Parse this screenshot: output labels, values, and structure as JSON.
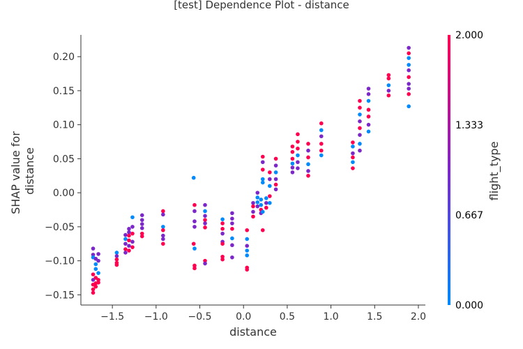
{
  "chart_data": {
    "type": "scatter",
    "title": "[test] Dependence Plot - distance",
    "xlabel": "distance",
    "ylabel_lines": [
      "SHAP value for",
      "distance"
    ],
    "xlim": [
      -1.86,
      2.08
    ],
    "ylim": [
      -0.165,
      0.232
    ],
    "x_ticks": [
      -1.5,
      -1.0,
      -0.5,
      0.0,
      0.5,
      1.0,
      1.5,
      2.0
    ],
    "x_tick_labels": [
      "−1.5",
      "−1.0",
      "−0.5",
      "0.0",
      "0.5",
      "1.0",
      "1.5",
      "2.0"
    ],
    "y_ticks": [
      0.2,
      0.15,
      0.1,
      0.05,
      0.0,
      -0.05,
      -0.1,
      -0.15
    ],
    "y_tick_labels": [
      "0.20",
      "0.15",
      "0.10",
      "0.05",
      "0.00",
      "−0.05",
      "−0.10",
      "−0.15"
    ],
    "grid": false,
    "colorbar": {
      "label": "flight_type",
      "range": [
        0.0,
        2.0
      ],
      "tick_labels": [
        "2.000",
        "1.333",
        "0.667",
        "0.000"
      ],
      "tick_values": [
        2.0,
        1.333,
        0.667,
        0.0
      ],
      "colors": [
        "#008afb",
        "#7c28c9",
        "#ff0051"
      ]
    },
    "points": [
      {
        "x": -1.72,
        "y": -0.082,
        "c": 1
      },
      {
        "x": -1.72,
        "y": -0.091,
        "c": 1
      },
      {
        "x": -1.72,
        "y": -0.095,
        "c": 0
      },
      {
        "x": -1.72,
        "y": -0.12,
        "c": 2
      },
      {
        "x": -1.72,
        "y": -0.128,
        "c": 1
      },
      {
        "x": -1.72,
        "y": -0.135,
        "c": 2
      },
      {
        "x": -1.72,
        "y": -0.142,
        "c": 2
      },
      {
        "x": -1.72,
        "y": -0.147,
        "c": 2
      },
      {
        "x": -1.69,
        "y": -0.097,
        "c": 1
      },
      {
        "x": -1.69,
        "y": -0.105,
        "c": 0
      },
      {
        "x": -1.69,
        "y": -0.112,
        "c": 0
      },
      {
        "x": -1.69,
        "y": -0.125,
        "c": 2
      },
      {
        "x": -1.69,
        "y": -0.133,
        "c": 2
      },
      {
        "x": -1.69,
        "y": -0.138,
        "c": 2
      },
      {
        "x": -1.66,
        "y": -0.09,
        "c": 1
      },
      {
        "x": -1.66,
        "y": -0.1,
        "c": 1
      },
      {
        "x": -1.66,
        "y": -0.118,
        "c": 0
      },
      {
        "x": -1.66,
        "y": -0.128,
        "c": 2
      },
      {
        "x": -1.66,
        "y": -0.132,
        "c": 2
      },
      {
        "x": -1.45,
        "y": -0.088,
        "c": 0
      },
      {
        "x": -1.45,
        "y": -0.093,
        "c": 1
      },
      {
        "x": -1.45,
        "y": -0.098,
        "c": 2
      },
      {
        "x": -1.45,
        "y": -0.103,
        "c": 2
      },
      {
        "x": -1.45,
        "y": -0.106,
        "c": 2
      },
      {
        "x": -1.35,
        "y": -0.062,
        "c": 1
      },
      {
        "x": -1.35,
        "y": -0.068,
        "c": 0
      },
      {
        "x": -1.35,
        "y": -0.075,
        "c": 1
      },
      {
        "x": -1.35,
        "y": -0.083,
        "c": 2
      },
      {
        "x": -1.35,
        "y": -0.088,
        "c": 1
      },
      {
        "x": -1.31,
        "y": -0.053,
        "c": 1
      },
      {
        "x": -1.31,
        "y": -0.058,
        "c": 1
      },
      {
        "x": -1.31,
        "y": -0.063,
        "c": 2
      },
      {
        "x": -1.31,
        "y": -0.07,
        "c": 2
      },
      {
        "x": -1.31,
        "y": -0.078,
        "c": 1
      },
      {
        "x": -1.31,
        "y": -0.085,
        "c": 2
      },
      {
        "x": -1.27,
        "y": -0.036,
        "c": 0
      },
      {
        "x": -1.27,
        "y": -0.05,
        "c": 1
      },
      {
        "x": -1.27,
        "y": -0.06,
        "c": 2
      },
      {
        "x": -1.27,
        "y": -0.072,
        "c": 1
      },
      {
        "x": -1.27,
        "y": -0.08,
        "c": 2
      },
      {
        "x": -1.16,
        "y": -0.033,
        "c": 1
      },
      {
        "x": -1.16,
        "y": -0.04,
        "c": 1
      },
      {
        "x": -1.16,
        "y": -0.046,
        "c": 1
      },
      {
        "x": -1.16,
        "y": -0.052,
        "c": 1
      },
      {
        "x": -1.16,
        "y": -0.06,
        "c": 2
      },
      {
        "x": -1.16,
        "y": -0.064,
        "c": 2
      },
      {
        "x": -0.92,
        "y": -0.027,
        "c": 2
      },
      {
        "x": -0.92,
        "y": -0.032,
        "c": 1
      },
      {
        "x": -0.92,
        "y": -0.05,
        "c": 0
      },
      {
        "x": -0.92,
        "y": -0.055,
        "c": 2
      },
      {
        "x": -0.92,
        "y": -0.063,
        "c": 1
      },
      {
        "x": -0.92,
        "y": -0.068,
        "c": 1
      },
      {
        "x": -0.92,
        "y": -0.075,
        "c": 2
      },
      {
        "x": -0.57,
        "y": 0.022,
        "c": 0
      },
      {
        "x": -0.56,
        "y": -0.018,
        "c": 2
      },
      {
        "x": -0.56,
        "y": -0.027,
        "c": 1
      },
      {
        "x": -0.56,
        "y": -0.042,
        "c": 1
      },
      {
        "x": -0.56,
        "y": -0.05,
        "c": 1
      },
      {
        "x": -0.57,
        "y": -0.075,
        "c": 2
      },
      {
        "x": -0.56,
        "y": -0.082,
        "c": 0
      },
      {
        "x": -0.56,
        "y": -0.107,
        "c": 2
      },
      {
        "x": -0.56,
        "y": -0.111,
        "c": 2
      },
      {
        "x": -0.44,
        "y": -0.018,
        "c": 1
      },
      {
        "x": -0.44,
        "y": -0.027,
        "c": 0
      },
      {
        "x": -0.44,
        "y": -0.034,
        "c": 1
      },
      {
        "x": -0.44,
        "y": -0.04,
        "c": 2
      },
      {
        "x": -0.44,
        "y": -0.045,
        "c": 1
      },
      {
        "x": -0.44,
        "y": -0.051,
        "c": 2
      },
      {
        "x": -0.44,
        "y": -0.1,
        "c": 2
      },
      {
        "x": -0.44,
        "y": -0.104,
        "c": 1
      },
      {
        "x": -0.24,
        "y": -0.039,
        "c": 0
      },
      {
        "x": -0.24,
        "y": -0.045,
        "c": 2
      },
      {
        "x": -0.24,
        "y": -0.053,
        "c": 2
      },
      {
        "x": -0.24,
        "y": -0.06,
        "c": 1
      },
      {
        "x": -0.24,
        "y": -0.072,
        "c": 1
      },
      {
        "x": -0.24,
        "y": -0.075,
        "c": 2
      },
      {
        "x": -0.24,
        "y": -0.094,
        "c": 2
      },
      {
        "x": -0.24,
        "y": -0.098,
        "c": 2
      },
      {
        "x": -0.13,
        "y": -0.03,
        "c": 1
      },
      {
        "x": -0.13,
        "y": -0.038,
        "c": 1
      },
      {
        "x": -0.13,
        "y": -0.045,
        "c": 1
      },
      {
        "x": -0.13,
        "y": -0.053,
        "c": 2
      },
      {
        "x": -0.13,
        "y": -0.067,
        "c": 0
      },
      {
        "x": -0.13,
        "y": -0.077,
        "c": 1
      },
      {
        "x": -0.13,
        "y": -0.095,
        "c": 1
      },
      {
        "x": 0.04,
        "y": -0.055,
        "c": 2
      },
      {
        "x": 0.04,
        "y": -0.068,
        "c": 0
      },
      {
        "x": 0.04,
        "y": -0.078,
        "c": 1
      },
      {
        "x": 0.04,
        "y": -0.085,
        "c": 0
      },
      {
        "x": 0.04,
        "y": -0.092,
        "c": 0
      },
      {
        "x": 0.04,
        "y": -0.11,
        "c": 2
      },
      {
        "x": 0.04,
        "y": -0.113,
        "c": 2
      },
      {
        "x": 0.11,
        "y": -0.015,
        "c": 1
      },
      {
        "x": 0.11,
        "y": -0.02,
        "c": 2
      },
      {
        "x": 0.11,
        "y": -0.028,
        "c": 1
      },
      {
        "x": 0.11,
        "y": -0.035,
        "c": 2
      },
      {
        "x": 0.16,
        "y": 0.0,
        "c": 1
      },
      {
        "x": 0.16,
        "y": -0.007,
        "c": 0
      },
      {
        "x": 0.16,
        "y": -0.014,
        "c": 0
      },
      {
        "x": 0.16,
        "y": -0.02,
        "c": 1
      },
      {
        "x": 0.2,
        "y": -0.01,
        "c": 0
      },
      {
        "x": 0.2,
        "y": -0.018,
        "c": 0
      },
      {
        "x": 0.2,
        "y": -0.025,
        "c": 2
      },
      {
        "x": 0.2,
        "y": -0.03,
        "c": 1
      },
      {
        "x": 0.22,
        "y": 0.053,
        "c": 2
      },
      {
        "x": 0.22,
        "y": 0.045,
        "c": 1
      },
      {
        "x": 0.22,
        "y": 0.034,
        "c": 2
      },
      {
        "x": 0.22,
        "y": 0.02,
        "c": 0
      },
      {
        "x": 0.22,
        "y": 0.015,
        "c": 0
      },
      {
        "x": 0.22,
        "y": -0.028,
        "c": 0
      },
      {
        "x": 0.22,
        "y": -0.055,
        "c": 2
      },
      {
        "x": 0.26,
        "y": -0.008,
        "c": 0
      },
      {
        "x": 0.26,
        "y": -0.015,
        "c": 1
      },
      {
        "x": 0.26,
        "y": -0.022,
        "c": 2
      },
      {
        "x": 0.3,
        "y": 0.03,
        "c": 2
      },
      {
        "x": 0.3,
        "y": 0.02,
        "c": 1
      },
      {
        "x": 0.3,
        "y": 0.01,
        "c": 0
      },
      {
        "x": 0.3,
        "y": -0.005,
        "c": 2
      },
      {
        "x": 0.3,
        "y": -0.015,
        "c": 0
      },
      {
        "x": 0.37,
        "y": 0.05,
        "c": 2
      },
      {
        "x": 0.37,
        "y": 0.04,
        "c": 1
      },
      {
        "x": 0.37,
        "y": 0.03,
        "c": 0
      },
      {
        "x": 0.37,
        "y": 0.02,
        "c": 1
      },
      {
        "x": 0.37,
        "y": 0.012,
        "c": 2
      },
      {
        "x": 0.37,
        "y": 0.005,
        "c": 1
      },
      {
        "x": 0.56,
        "y": 0.068,
        "c": 2
      },
      {
        "x": 0.56,
        "y": 0.06,
        "c": 2
      },
      {
        "x": 0.56,
        "y": 0.05,
        "c": 2
      },
      {
        "x": 0.56,
        "y": 0.043,
        "c": 0
      },
      {
        "x": 0.56,
        "y": 0.037,
        "c": 1
      },
      {
        "x": 0.56,
        "y": 0.03,
        "c": 1
      },
      {
        "x": 0.62,
        "y": 0.086,
        "c": 2
      },
      {
        "x": 0.62,
        "y": 0.075,
        "c": 2
      },
      {
        "x": 0.62,
        "y": 0.065,
        "c": 2
      },
      {
        "x": 0.62,
        "y": 0.055,
        "c": 0
      },
      {
        "x": 0.62,
        "y": 0.045,
        "c": 1
      },
      {
        "x": 0.62,
        "y": 0.036,
        "c": 1
      },
      {
        "x": 0.74,
        "y": 0.072,
        "c": 2
      },
      {
        "x": 0.74,
        "y": 0.062,
        "c": 1
      },
      {
        "x": 0.74,
        "y": 0.052,
        "c": 2
      },
      {
        "x": 0.74,
        "y": 0.042,
        "c": 0
      },
      {
        "x": 0.74,
        "y": 0.032,
        "c": 1
      },
      {
        "x": 0.74,
        "y": 0.025,
        "c": 2
      },
      {
        "x": 0.89,
        "y": 0.102,
        "c": 2
      },
      {
        "x": 0.89,
        "y": 0.092,
        "c": 0
      },
      {
        "x": 0.89,
        "y": 0.083,
        "c": 1
      },
      {
        "x": 0.89,
        "y": 0.072,
        "c": 2
      },
      {
        "x": 0.89,
        "y": 0.062,
        "c": 2
      },
      {
        "x": 0.89,
        "y": 0.055,
        "c": 0
      },
      {
        "x": 1.25,
        "y": 0.074,
        "c": 2
      },
      {
        "x": 1.25,
        "y": 0.068,
        "c": 0
      },
      {
        "x": 1.25,
        "y": 0.058,
        "c": 1
      },
      {
        "x": 1.25,
        "y": 0.052,
        "c": 2
      },
      {
        "x": 1.25,
        "y": 0.045,
        "c": 0
      },
      {
        "x": 1.25,
        "y": 0.036,
        "c": 2
      },
      {
        "x": 1.33,
        "y": 0.135,
        "c": 2
      },
      {
        "x": 1.33,
        "y": 0.125,
        "c": 2
      },
      {
        "x": 1.33,
        "y": 0.115,
        "c": 0
      },
      {
        "x": 1.33,
        "y": 0.105,
        "c": 1
      },
      {
        "x": 1.33,
        "y": 0.095,
        "c": 2
      },
      {
        "x": 1.33,
        "y": 0.085,
        "c": 1
      },
      {
        "x": 1.33,
        "y": 0.072,
        "c": 0
      },
      {
        "x": 1.33,
        "y": 0.062,
        "c": 1
      },
      {
        "x": 1.43,
        "y": 0.153,
        "c": 1
      },
      {
        "x": 1.43,
        "y": 0.145,
        "c": 1
      },
      {
        "x": 1.43,
        "y": 0.135,
        "c": 0
      },
      {
        "x": 1.43,
        "y": 0.122,
        "c": 2
      },
      {
        "x": 1.43,
        "y": 0.112,
        "c": 2
      },
      {
        "x": 1.43,
        "y": 0.1,
        "c": 1
      },
      {
        "x": 1.43,
        "y": 0.09,
        "c": 0
      },
      {
        "x": 1.66,
        "y": 0.173,
        "c": 2
      },
      {
        "x": 1.66,
        "y": 0.168,
        "c": 2
      },
      {
        "x": 1.66,
        "y": 0.158,
        "c": 0
      },
      {
        "x": 1.66,
        "y": 0.15,
        "c": 1
      },
      {
        "x": 1.66,
        "y": 0.143,
        "c": 2
      },
      {
        "x": 1.89,
        "y": 0.213,
        "c": 1
      },
      {
        "x": 1.89,
        "y": 0.205,
        "c": 2
      },
      {
        "x": 1.89,
        "y": 0.198,
        "c": 0
      },
      {
        "x": 1.89,
        "y": 0.188,
        "c": 0
      },
      {
        "x": 1.89,
        "y": 0.18,
        "c": 1
      },
      {
        "x": 1.89,
        "y": 0.17,
        "c": 2
      },
      {
        "x": 1.89,
        "y": 0.16,
        "c": 1
      },
      {
        "x": 1.89,
        "y": 0.153,
        "c": 1
      },
      {
        "x": 1.89,
        "y": 0.145,
        "c": 2
      },
      {
        "x": 1.89,
        "y": 0.127,
        "c": 0
      }
    ]
  }
}
